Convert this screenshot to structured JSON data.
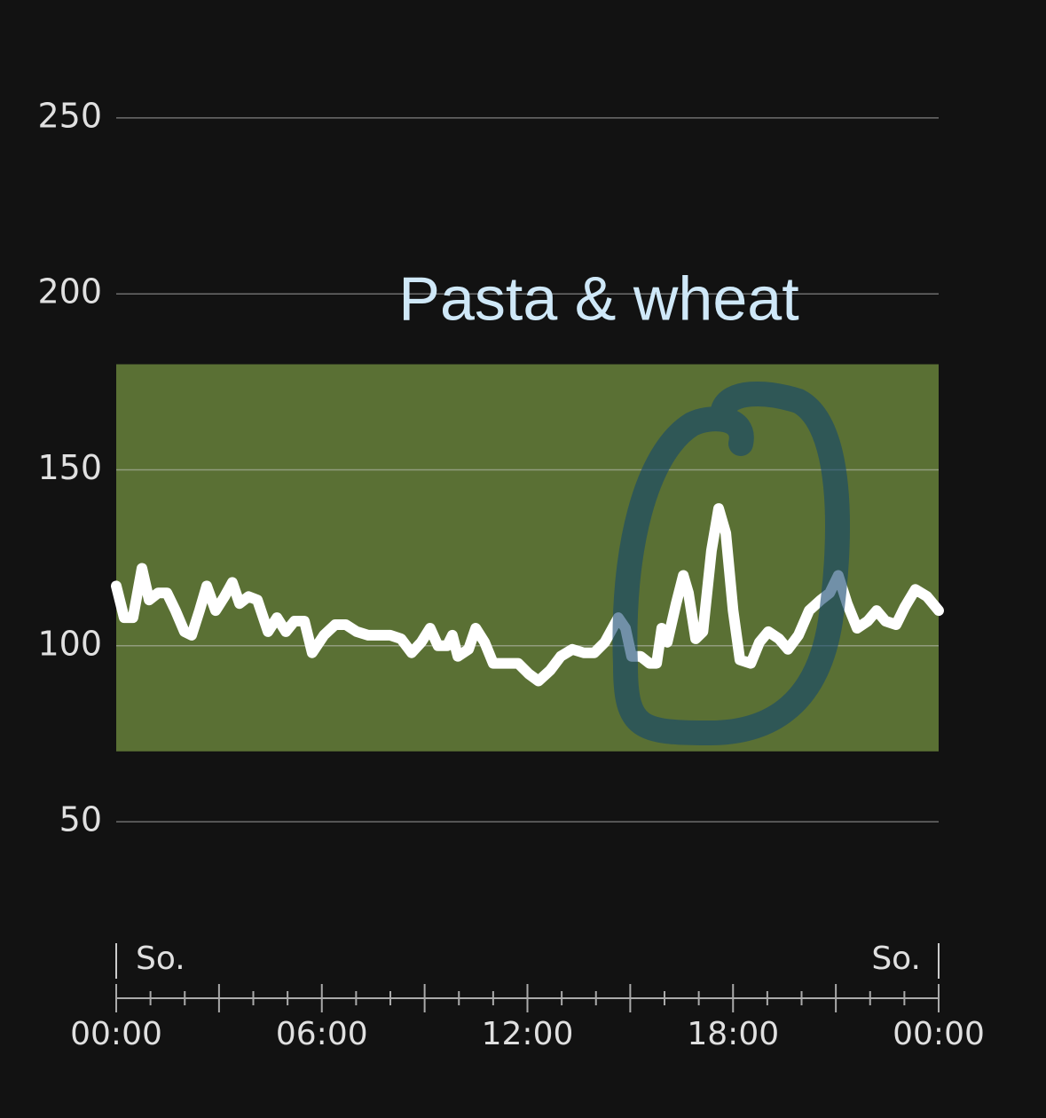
{
  "chart_data": {
    "type": "line",
    "annotation": "Pasta & wheat",
    "x": [
      0,
      0.23,
      0.49,
      0.75,
      0.96,
      1.22,
      1.48,
      1.73,
      1.99,
      2.2,
      2.43,
      2.64,
      2.9,
      3.16,
      3.39,
      3.6,
      3.86,
      4.12,
      4.43,
      4.69,
      4.95,
      5.2,
      5.49,
      5.72,
      6.06,
      6.39,
      6.7,
      7.02,
      7.35,
      7.69,
      8.0,
      8.31,
      8.62,
      8.9,
      9.16,
      9.39,
      9.66,
      9.81,
      9.97,
      10.28,
      10.49,
      10.75,
      11.0,
      11.37,
      11.73,
      12.04,
      12.32,
      12.66,
      12.97,
      13.31,
      13.64,
      13.95,
      14.26,
      14.65,
      14.86,
      15.04,
      15.3,
      15.56,
      15.77,
      15.92,
      16.08,
      16.34,
      16.55,
      16.7,
      16.91,
      17.12,
      17.37,
      17.58,
      17.79,
      18.0,
      18.2,
      18.52,
      18.77,
      19.03,
      19.34,
      19.6,
      19.91,
      20.22,
      20.56,
      20.82,
      21.07,
      21.33,
      21.62,
      21.93,
      22.19,
      22.45,
      22.76,
      23.01,
      23.32,
      23.66,
      24.0
    ],
    "series": [
      {
        "color": "#ffffff",
        "values": [
          117,
          108,
          108,
          122,
          113,
          115,
          115,
          110,
          104,
          103,
          110,
          117,
          110,
          114,
          118,
          112,
          114,
          113,
          104,
          108,
          104,
          107,
          107,
          98,
          103,
          106,
          106,
          104,
          103,
          103,
          103,
          102,
          98,
          101,
          105,
          100,
          100,
          103,
          97,
          99,
          105,
          101,
          95,
          95,
          95,
          92,
          90,
          93,
          97,
          99,
          98,
          98,
          101,
          108,
          105,
          97,
          97,
          95,
          95,
          105,
          101,
          112,
          120,
          115,
          102,
          104,
          127,
          139,
          132,
          110,
          96,
          95,
          101,
          104,
          102,
          99,
          103,
          110,
          113,
          115,
          120,
          112,
          105,
          107,
          110,
          107,
          106,
          111,
          116,
          114,
          110
        ]
      }
    ],
    "target_range": [
      70,
      180
    ],
    "target_color": "#5a7034",
    "xlim": [
      0,
      24
    ],
    "xticks": [
      {
        "value": 0,
        "label": "00:00"
      },
      {
        "value": 6,
        "label": "06:00"
      },
      {
        "value": 12,
        "label": "12:00"
      },
      {
        "value": 18,
        "label": "18:00"
      },
      {
        "value": 24,
        "label": "00:00"
      }
    ],
    "xticks_minor": [
      0,
      1,
      2,
      3,
      4,
      5,
      6,
      7,
      8,
      9,
      10,
      11,
      12,
      13,
      14,
      15,
      16,
      17,
      18,
      19,
      20,
      21,
      22,
      23,
      24
    ],
    "day_labels": [
      {
        "x": 0,
        "label": "So."
      },
      {
        "x": 24,
        "label": "So."
      }
    ],
    "ylim": [
      25,
      275
    ],
    "yticks": [
      50,
      100,
      150,
      200,
      250
    ],
    "grid": true
  }
}
